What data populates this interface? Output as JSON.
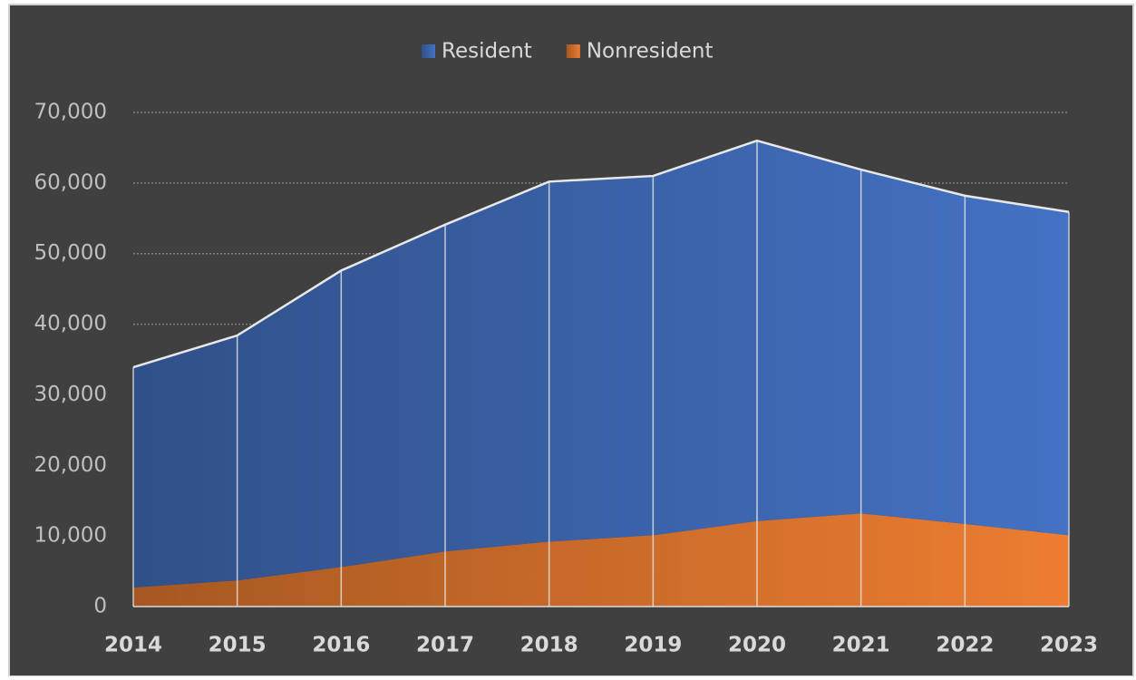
{
  "chart_data": {
    "type": "area",
    "stacked": true,
    "categories": [
      "2014",
      "2015",
      "2016",
      "2017",
      "2018",
      "2019",
      "2020",
      "2021",
      "2022",
      "2023"
    ],
    "series": [
      {
        "name": "Nonresident",
        "color": "#ed7d31",
        "values": [
          2700,
          3700,
          5600,
          7800,
          9200,
          10100,
          12100,
          13200,
          11700,
          10100
        ]
      },
      {
        "name": "Resident",
        "color": "#4472c4",
        "values": [
          31200,
          34700,
          42000,
          46300,
          51000,
          50900,
          53900,
          48700,
          46500,
          45800
        ]
      }
    ],
    "legend_order": [
      1,
      0
    ],
    "ylim": [
      0,
      70000
    ],
    "yticks": [
      0,
      {
        "value": 10000,
        "label": "10,000"
      },
      {
        "value": 20000,
        "label": "20,000"
      },
      {
        "value": 30000,
        "label": "30,000"
      },
      {
        "value": 40000,
        "label": "40,000"
      },
      {
        "value": 50000,
        "label": "50,000"
      },
      {
        "value": 60000,
        "label": "60,000"
      },
      {
        "value": 70000,
        "label": "70,000"
      }
    ],
    "grid": true,
    "legend": "top"
  }
}
